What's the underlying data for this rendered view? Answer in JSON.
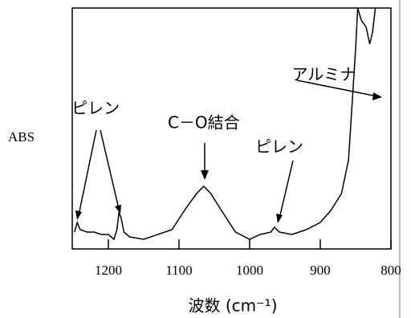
{
  "chart_data": {
    "type": "line",
    "ylabel": "ABS",
    "xlabel": "波数 (cm⁻¹)",
    "x": [
      1248,
      1244,
      1240,
      1230,
      1220,
      1210,
      1200,
      1192,
      1188,
      1185,
      1182,
      1178,
      1170,
      1150,
      1130,
      1110,
      1090,
      1075,
      1065,
      1055,
      1040,
      1020,
      1000,
      985,
      970,
      965,
      958,
      940,
      920,
      900,
      885,
      870,
      860,
      855,
      850,
      847,
      842,
      835,
      830,
      826,
      822
    ],
    "series": [
      {
        "name": "spectrum",
        "color": "#000000",
        "values": [
          7,
          11,
          8,
          7,
          7,
          6,
          6,
          4,
          8,
          15,
          13,
          7,
          5,
          4,
          6,
          8,
          17,
          23,
          26,
          23,
          16,
          7,
          4,
          6,
          7,
          9,
          7,
          6,
          8,
          11,
          16,
          23,
          37,
          60,
          83,
          100,
          95,
          92,
          85,
          90,
          100
        ]
      }
    ],
    "xlim": [
      1250,
      800
    ],
    "ylim": [
      0,
      100
    ],
    "xticks": [
      1200,
      1100,
      1000,
      900,
      800
    ],
    "annotations": [
      {
        "text": "ピレン",
        "x": 1218,
        "y": 58
      },
      {
        "text": "C－O結合",
        "x": 1065,
        "y": 52
      },
      {
        "text": "ピレン",
        "x": 958,
        "y": 42
      },
      {
        "text": "アルミナ",
        "x": 895,
        "y": 72
      }
    ]
  }
}
